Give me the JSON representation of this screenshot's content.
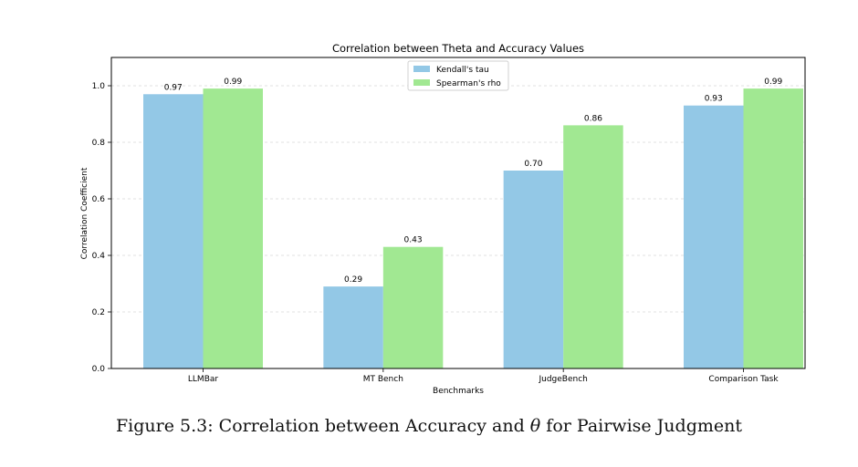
{
  "caption": {
    "prefix": "Figure 5.3: Correlation between Accuracy and",
    "symbol": "θ",
    "suffix": "for Pairwise Judgment"
  },
  "chart_data": {
    "type": "bar",
    "title": "Correlation between Theta and Accuracy Values",
    "xlabel": "Benchmarks",
    "ylabel": "Correlation Coefficient",
    "categories": [
      "LLMBar",
      "MT Bench",
      "JudgeBench",
      "Comparison Task"
    ],
    "series": [
      {
        "name": "Kendall's tau",
        "color": "#93c8e6",
        "values": [
          0.97,
          0.29,
          0.7,
          0.93
        ],
        "labels": [
          "0.97",
          "0.29",
          "0.70",
          "0.93"
        ]
      },
      {
        "name": "Spearman's rho",
        "color": "#a1e892",
        "values": [
          0.99,
          0.43,
          0.86,
          0.99
        ],
        "labels": [
          "0.99",
          "0.43",
          "0.86",
          "0.99"
        ]
      }
    ],
    "ylim": [
      0,
      1.1
    ],
    "yticks": [
      0.0,
      0.2,
      0.4,
      0.6,
      0.8,
      1.0
    ],
    "ytick_labels": [
      "0.0",
      "0.2",
      "0.4",
      "0.6",
      "0.8",
      "1.0"
    ],
    "grid": "horizontal dashed",
    "legend_position": "top-center"
  }
}
